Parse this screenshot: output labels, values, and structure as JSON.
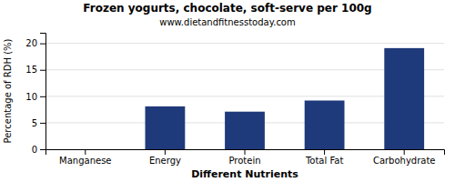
{
  "chart_data": {
    "type": "bar",
    "title": "Frozen yogurts, chocolate, soft-serve per 100g",
    "subtitle": "www.dietandfitnesstoday.com",
    "xlabel": "Different Nutrients",
    "ylabel": "Percentage of RDH (%)",
    "categories": [
      "Manganese",
      "Energy",
      "Protein",
      "Total Fat",
      "Carbohydrate"
    ],
    "values": [
      0.0,
      8.1,
      7.1,
      9.2,
      19.1
    ],
    "color": "#1f3a7a",
    "ylim": [
      0,
      22
    ],
    "yticks": [
      0,
      5,
      10,
      15,
      20
    ],
    "grid": true
  }
}
